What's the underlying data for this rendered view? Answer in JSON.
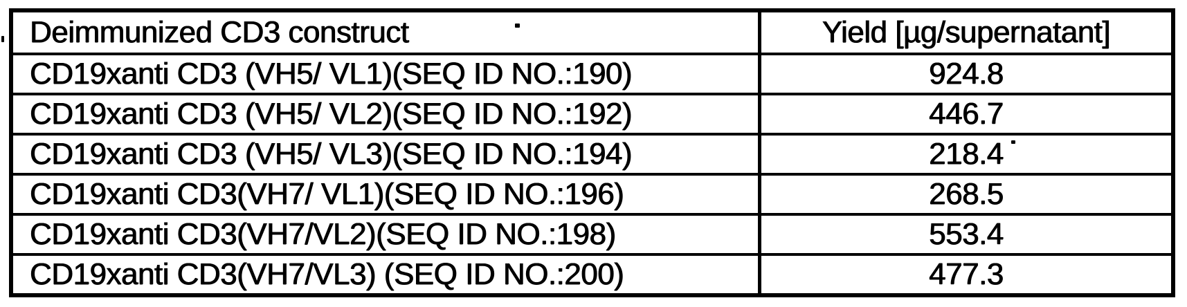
{
  "colors": {
    "ink": "#000000",
    "paper": "#ffffff"
  },
  "table": {
    "columns": [
      {
        "label": "Deimmunized CD3 construct"
      },
      {
        "label": "Yield [µg/supernatant]"
      }
    ],
    "rows": [
      {
        "construct": "CD19xanti CD3 (VH5/ VL1)(SEQ ID NO.:190)",
        "yield": "924.8"
      },
      {
        "construct": "CD19xanti CD3 (VH5/ VL2)(SEQ ID NO.:192)",
        "yield": "446.7"
      },
      {
        "construct": "CD19xanti CD3 (VH5/ VL3)(SEQ ID NO.:194)",
        "yield": "218.4"
      },
      {
        "construct": "CD19xanti CD3(VH7/ VL1)(SEQ ID NO.:196)",
        "yield": "268.5"
      },
      {
        "construct": "CD19xanti CD3(VH7/VL2)(SEQ ID NO.:198)",
        "yield": "553.4"
      },
      {
        "construct": "CD19xanti CD3(VH7/VL3) (SEQ ID NO.:200)",
        "yield": "477.3"
      }
    ]
  }
}
